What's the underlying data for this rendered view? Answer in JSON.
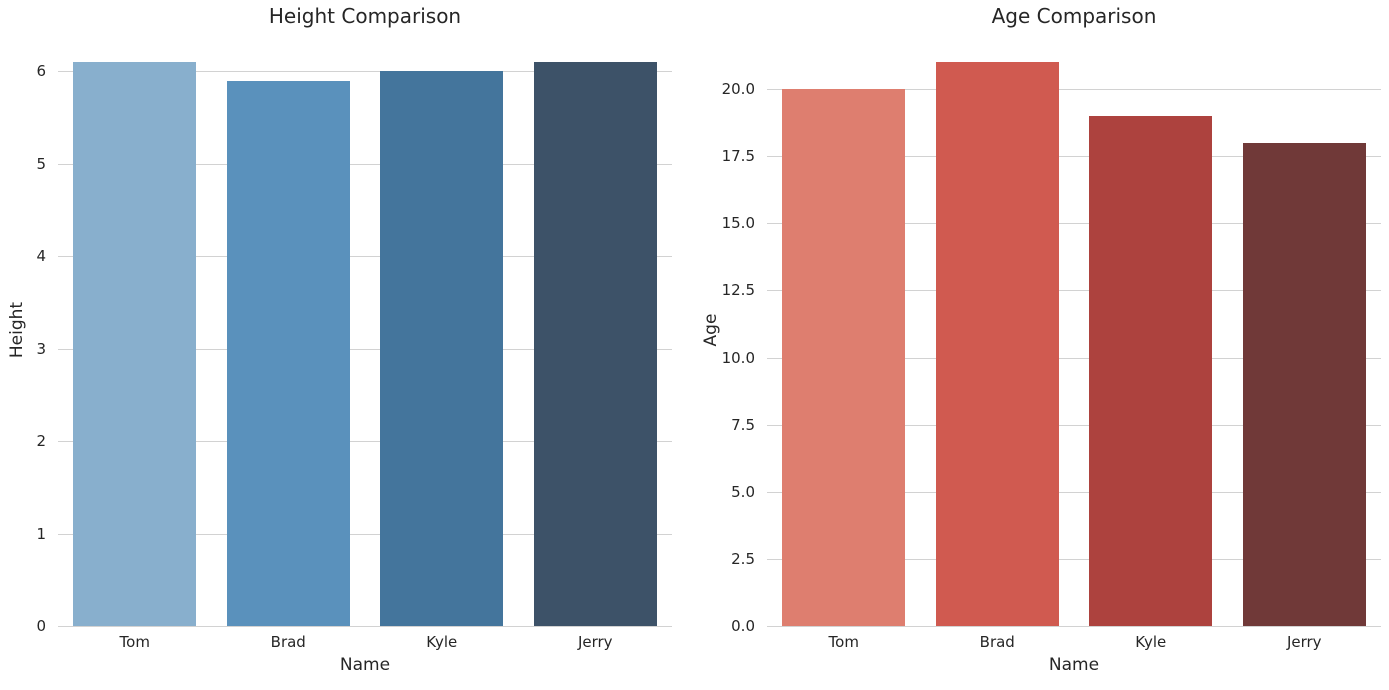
{
  "figure": {
    "background_color": "#ffffff",
    "text_color": "#262626",
    "grid_color": "#d2d2d2"
  },
  "chart_data": [
    {
      "type": "bar",
      "title": "Height Comparison",
      "xlabel": "Name",
      "ylabel": "Height",
      "categories": [
        "Tom",
        "Brad",
        "Kyle",
        "Jerry"
      ],
      "values": [
        6.1,
        5.9,
        6.0,
        6.1
      ],
      "bar_colors": [
        "#88afcd",
        "#5a91bc",
        "#44759c",
        "#3d5268"
      ],
      "ylim": [
        0,
        6.405
      ],
      "yticks": [
        0,
        1,
        2,
        3,
        4,
        5,
        6
      ],
      "ytick_labels": [
        "0",
        "1",
        "2",
        "3",
        "4",
        "5",
        "6"
      ],
      "grid": true,
      "legend": "none"
    },
    {
      "type": "bar",
      "title": "Age Comparison",
      "xlabel": "Name",
      "ylabel": "Age",
      "categories": [
        "Tom",
        "Brad",
        "Kyle",
        "Jerry"
      ],
      "values": [
        20,
        21,
        19,
        18
      ],
      "bar_colors": [
        "#de7e6f",
        "#d05a50",
        "#ad423e",
        "#703938"
      ],
      "ylim": [
        0,
        22.05
      ],
      "yticks": [
        0,
        2.5,
        5,
        7.5,
        10,
        12.5,
        15,
        17.5,
        20
      ],
      "ytick_labels": [
        "0.0",
        "2.5",
        "5.0",
        "7.5",
        "10.0",
        "12.5",
        "15.0",
        "17.5",
        "20.0"
      ],
      "grid": true,
      "legend": "none"
    }
  ]
}
